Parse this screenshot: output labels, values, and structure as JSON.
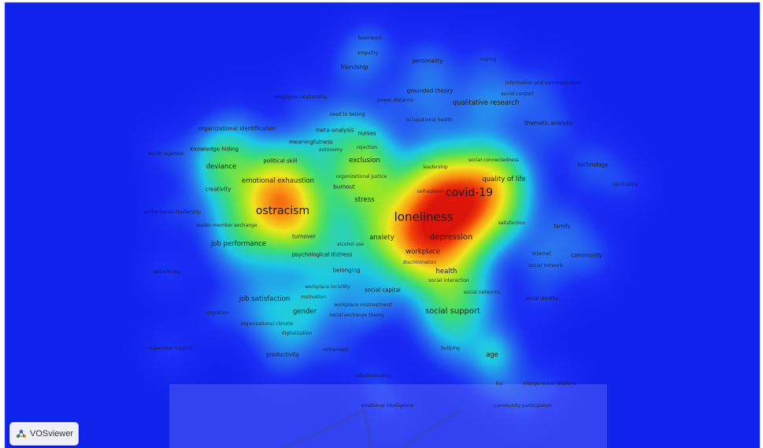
{
  "app": {
    "logo_text": "VOSviewer"
  },
  "chart_data": {
    "type": "heatmap",
    "keywords": [
      {
        "label": "teamwork",
        "size": 1
      },
      {
        "label": "empathy",
        "size": 1
      },
      {
        "label": "personality",
        "size": 2
      },
      {
        "label": "coping",
        "size": 1
      },
      {
        "label": "friendship",
        "size": 2
      },
      {
        "label": "information and communication",
        "size": 1
      },
      {
        "label": "grounded theory",
        "size": 2
      },
      {
        "label": "social contact",
        "size": 1
      },
      {
        "label": "employee relationship",
        "size": 1
      },
      {
        "label": "power distance",
        "size": 1
      },
      {
        "label": "qualitative research",
        "size": 3
      },
      {
        "label": "need to belong",
        "size": 1
      },
      {
        "label": "occupational health",
        "size": 1
      },
      {
        "label": "thematic analysis",
        "size": 2
      },
      {
        "label": "organizational identification",
        "size": 2
      },
      {
        "label": "meta-analysis",
        "size": 2
      },
      {
        "label": "nurses",
        "size": 2
      },
      {
        "label": "meaningfulness",
        "size": 2
      },
      {
        "label": "autonomy",
        "size": 1
      },
      {
        "label": "rejection",
        "size": 1
      },
      {
        "label": "social rejection",
        "size": 1
      },
      {
        "label": "knowledge hiding",
        "size": 2
      },
      {
        "label": "political skill",
        "size": 2
      },
      {
        "label": "exclusion",
        "size": 3
      },
      {
        "label": "social connectedness",
        "size": 1
      },
      {
        "label": "deviance",
        "size": 3
      },
      {
        "label": "leadership",
        "size": 1
      },
      {
        "label": "technology",
        "size": 2
      },
      {
        "label": "organizational justice",
        "size": 1
      },
      {
        "label": "quality of life",
        "size": 3
      },
      {
        "label": "emotional exhaustion",
        "size": 3
      },
      {
        "label": "burnout",
        "size": 2
      },
      {
        "label": "spirituality",
        "size": 1
      },
      {
        "label": "creativity",
        "size": 2
      },
      {
        "label": "self-esteem",
        "size": 1
      },
      {
        "label": "covid-19",
        "size": 6
      },
      {
        "label": "stress",
        "size": 3
      },
      {
        "label": "ostracism",
        "size": 6
      },
      {
        "label": "authoritarian leadership",
        "size": 1
      },
      {
        "label": "loneliness",
        "size": 7
      },
      {
        "label": "satisfaction",
        "size": 1
      },
      {
        "label": "family",
        "size": 2
      },
      {
        "label": "leader-member exchange",
        "size": 1
      },
      {
        "label": "turnover",
        "size": 2
      },
      {
        "label": "anxiety",
        "size": 3
      },
      {
        "label": "depression",
        "size": 4
      },
      {
        "label": "job performance",
        "size": 3
      },
      {
        "label": "alcohol use",
        "size": 1
      },
      {
        "label": "workplace",
        "size": 3
      },
      {
        "label": "internet",
        "size": 1
      },
      {
        "label": "community",
        "size": 2
      },
      {
        "label": "psychological distress",
        "size": 2
      },
      {
        "label": "discrimination",
        "size": 1
      },
      {
        "label": "social network",
        "size": 1
      },
      {
        "label": "belonging",
        "size": 2
      },
      {
        "label": "health",
        "size": 3
      },
      {
        "label": "self-efficacy",
        "size": 1
      },
      {
        "label": "social interaction",
        "size": 1
      },
      {
        "label": "workplace incivility",
        "size": 1
      },
      {
        "label": "social capital",
        "size": 2
      },
      {
        "label": "motivation",
        "size": 1
      },
      {
        "label": "social networks",
        "size": 1
      },
      {
        "label": "job satisfaction",
        "size": 3
      },
      {
        "label": "social identity",
        "size": 1
      },
      {
        "label": "workplace mistreatment",
        "size": 1
      },
      {
        "label": "migration",
        "size": 1
      },
      {
        "label": "gender",
        "size": 3
      },
      {
        "label": "social exchange theory",
        "size": 1
      },
      {
        "label": "social support",
        "size": 4
      },
      {
        "label": "organizational climate",
        "size": 1
      },
      {
        "label": "digitalization",
        "size": 1
      },
      {
        "label": "supervisor support",
        "size": 1
      },
      {
        "label": "retirement",
        "size": 1
      },
      {
        "label": "bullying",
        "size": 1
      },
      {
        "label": "productivity",
        "size": 2
      },
      {
        "label": "age",
        "size": 3
      },
      {
        "label": "whistleblowing",
        "size": 1
      },
      {
        "label": "hiv",
        "size": 1
      },
      {
        "label": "interpersonal relations",
        "size": 1
      },
      {
        "label": "emotional intelligence",
        "size": 1
      },
      {
        "label": "community participation",
        "size": 1
      }
    ]
  }
}
